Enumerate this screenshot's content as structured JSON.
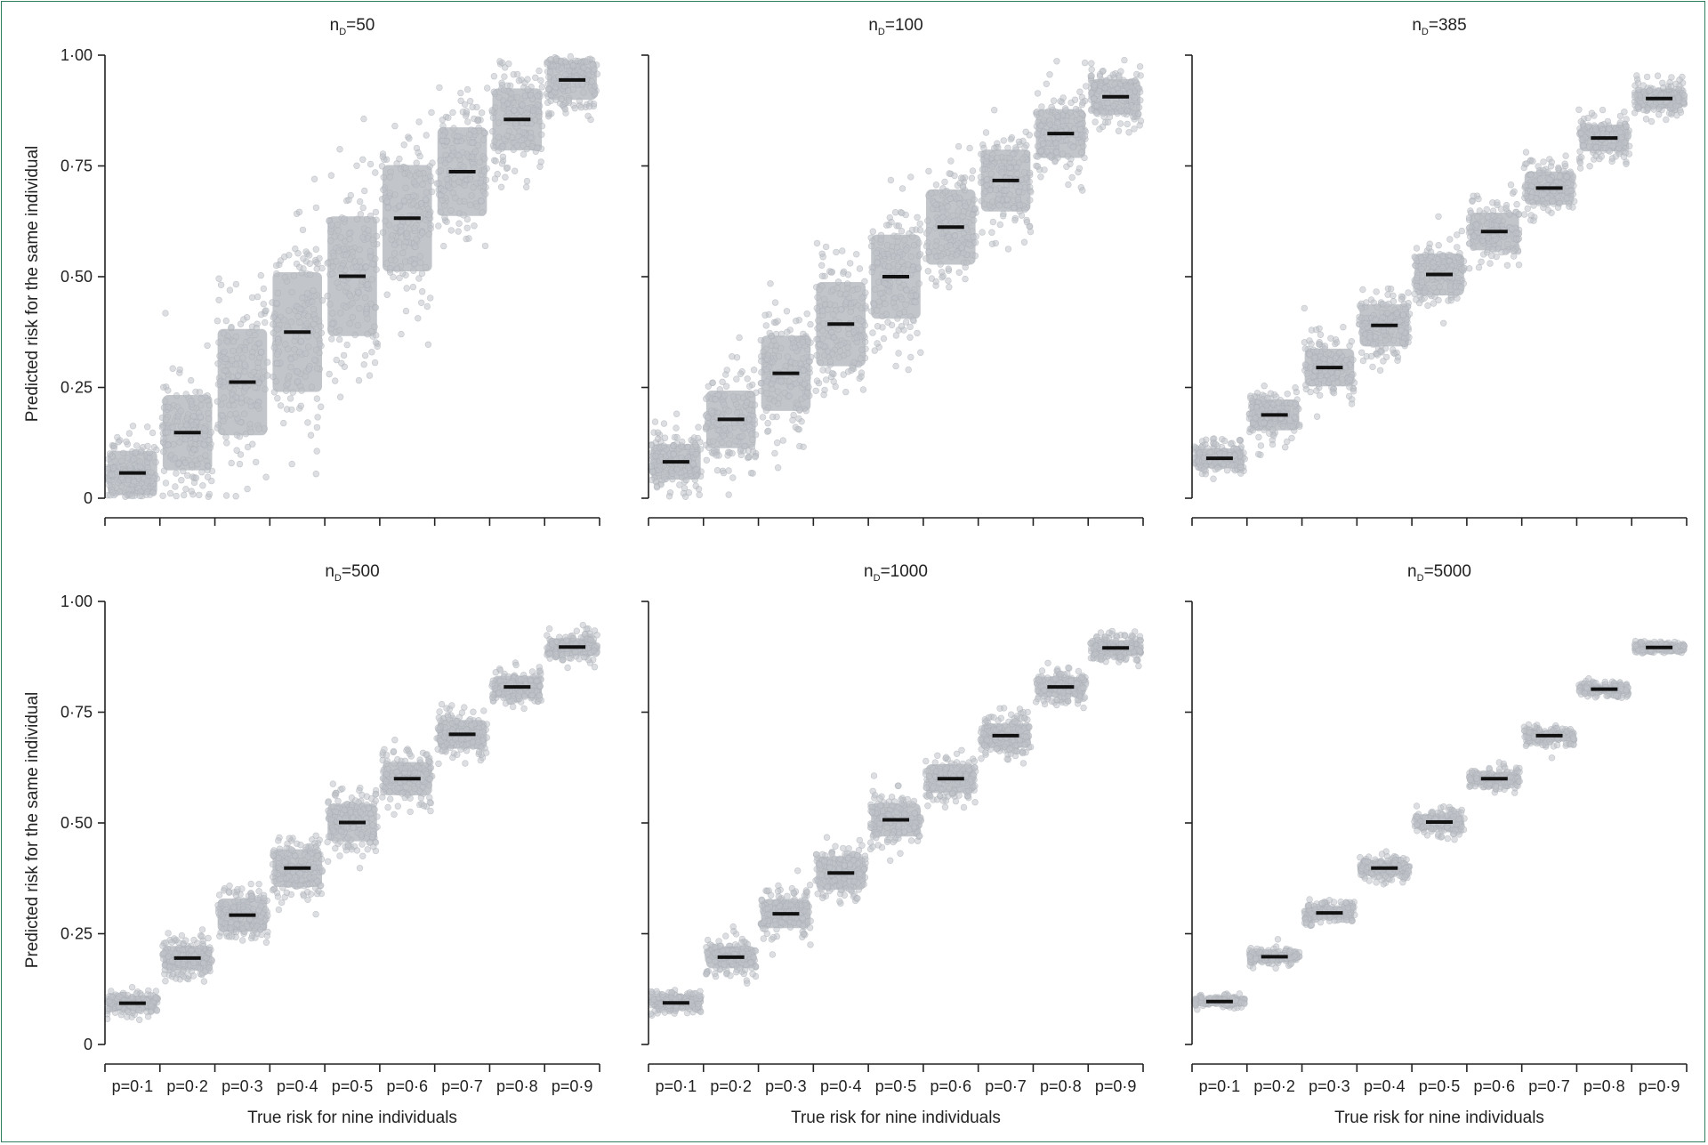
{
  "colors": {
    "points": "#bfc3c8",
    "mean": "#111111",
    "axis": "#222222",
    "frame": "#2e7d5b"
  },
  "chart_data": [
    {
      "type": "scatter",
      "title": "nD=50",
      "title_main": "n",
      "title_sub": "D",
      "title_suffix": "=50",
      "xlabel": "",
      "ylabel": "Predicted risk for the same individual",
      "categories": [
        "p=0·1",
        "p=0·2",
        "p=0·3",
        "p=0·4",
        "p=0·5",
        "p=0·6",
        "p=0·7",
        "p=0·8",
        "p=0·9"
      ],
      "show_x_tick_labels": false,
      "ylim": [
        0,
        1
      ],
      "yticks": [
        "0",
        "0·25",
        "0·50",
        "0·75",
        "1·00"
      ],
      "series": [
        {
          "means": [
            0.057,
            0.148,
            0.262,
            0.375,
            0.501,
            0.632,
            0.737,
            0.855,
            0.944
          ],
          "spread": [
            0.1,
            0.17,
            0.24,
            0.27,
            0.27,
            0.24,
            0.2,
            0.14,
            0.09
          ]
        }
      ]
    },
    {
      "type": "scatter",
      "title": "nD=100",
      "title_main": "n",
      "title_sub": "D",
      "title_suffix": "=100",
      "xlabel": "",
      "ylabel": "",
      "categories": [
        "p=0·1",
        "p=0·2",
        "p=0·3",
        "p=0·4",
        "p=0·5",
        "p=0·6",
        "p=0·7",
        "p=0·8",
        "p=0·9"
      ],
      "show_x_tick_labels": false,
      "ylim": [
        0,
        1
      ],
      "yticks": [
        "0",
        "0·25",
        "0·50",
        "0·75",
        "1·00"
      ],
      "series": [
        {
          "means": [
            0.082,
            0.178,
            0.282,
            0.393,
            0.5,
            0.612,
            0.717,
            0.823,
            0.906
          ],
          "spread": [
            0.08,
            0.13,
            0.17,
            0.19,
            0.19,
            0.17,
            0.14,
            0.11,
            0.08
          ]
        }
      ]
    },
    {
      "type": "scatter",
      "title": "nD=385",
      "title_main": "n",
      "title_sub": "D",
      "title_suffix": "=385",
      "xlabel": "",
      "ylabel": "",
      "categories": [
        "p=0·1",
        "p=0·2",
        "p=0·3",
        "p=0·4",
        "p=0·5",
        "p=0·6",
        "p=0·7",
        "p=0·8",
        "p=0·9"
      ],
      "show_x_tick_labels": false,
      "ylim": [
        0,
        1
      ],
      "yticks": [
        "0",
        "0·25",
        "0·50",
        "0·75",
        "1·00"
      ],
      "series": [
        {
          "means": [
            0.09,
            0.188,
            0.295,
            0.39,
            0.505,
            0.602,
            0.7,
            0.813,
            0.902
          ],
          "spread": [
            0.045,
            0.07,
            0.085,
            0.095,
            0.095,
            0.085,
            0.075,
            0.06,
            0.045
          ]
        }
      ]
    },
    {
      "type": "scatter",
      "title": "nD=500",
      "title_main": "n",
      "title_sub": "D",
      "title_suffix": "=500",
      "xlabel": "True risk for nine individuals",
      "ylabel": "Predicted risk for the same individual",
      "categories": [
        "p=0·1",
        "p=0·2",
        "p=0·3",
        "p=0·4",
        "p=0·5",
        "p=0·6",
        "p=0·7",
        "p=0·8",
        "p=0·9"
      ],
      "show_x_tick_labels": true,
      "ylim": [
        0,
        1
      ],
      "yticks": [
        "0",
        "0·25",
        "0·50",
        "0·75",
        "1·00"
      ],
      "series": [
        {
          "means": [
            0.093,
            0.195,
            0.292,
            0.398,
            0.501,
            0.6,
            0.7,
            0.807,
            0.897
          ],
          "spread": [
            0.035,
            0.055,
            0.075,
            0.085,
            0.085,
            0.075,
            0.065,
            0.05,
            0.04
          ]
        }
      ]
    },
    {
      "type": "scatter",
      "title": "nD=1000",
      "title_main": "n",
      "title_sub": "D",
      "title_suffix": "=1000",
      "xlabel": "True risk for nine individuals",
      "ylabel": "",
      "categories": [
        "p=0·1",
        "p=0·2",
        "p=0·3",
        "p=0·4",
        "p=0·5",
        "p=0·6",
        "p=0·7",
        "p=0·8",
        "p=0·9"
      ],
      "show_x_tick_labels": true,
      "ylim": [
        0,
        1
      ],
      "yticks": [
        "0",
        "0·25",
        "0·50",
        "0·75",
        "1·00"
      ],
      "series": [
        {
          "means": [
            0.094,
            0.197,
            0.295,
            0.387,
            0.507,
            0.6,
            0.697,
            0.807,
            0.895
          ],
          "spread": [
            0.03,
            0.05,
            0.065,
            0.075,
            0.075,
            0.065,
            0.055,
            0.045,
            0.035
          ]
        }
      ]
    },
    {
      "type": "scatter",
      "title": "nD=5000",
      "title_main": "n",
      "title_sub": "D",
      "title_suffix": "=5000",
      "xlabel": "True risk for nine individuals",
      "ylabel": "",
      "categories": [
        "p=0·1",
        "p=0·2",
        "p=0·3",
        "p=0·4",
        "p=0·5",
        "p=0·6",
        "p=0·7",
        "p=0·8",
        "p=0·9"
      ],
      "show_x_tick_labels": true,
      "ylim": [
        0,
        1
      ],
      "yticks": [
        "0",
        "0·25",
        "0·50",
        "0·75",
        "1·00"
      ],
      "series": [
        {
          "means": [
            0.097,
            0.198,
            0.297,
            0.398,
            0.502,
            0.6,
            0.697,
            0.802,
            0.896
          ],
          "spread": [
            0.015,
            0.022,
            0.03,
            0.035,
            0.035,
            0.03,
            0.025,
            0.02,
            0.015
          ]
        }
      ]
    }
  ]
}
